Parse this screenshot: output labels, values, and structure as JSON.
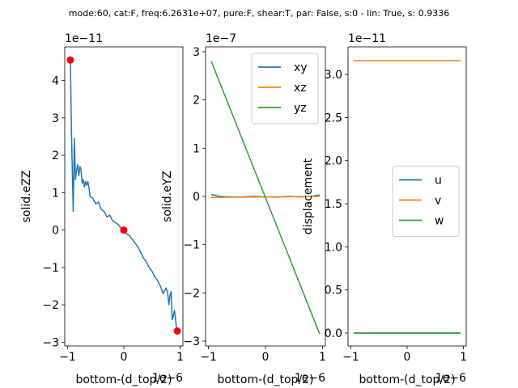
{
  "suptitle": "mode:60, cat:F, freq:6.2631e+07, pure:F, shear:T, par: False, s:0 - lin: True, s: 0.9336",
  "chart_data": [
    {
      "type": "line",
      "ylabel": "solid.eZZ",
      "xlabel": "bottom-(d_top/2)",
      "x_offset_text": "1e−6",
      "y_offset_text": "1e−11",
      "xlim": [
        -1.05,
        1.05
      ],
      "ylim": [
        -3.1,
        4.9
      ],
      "xticks": [
        -1,
        0,
        1
      ],
      "xtick_labels": [
        "−1",
        "0",
        "1"
      ],
      "yticks": [
        -3,
        -2,
        -1,
        0,
        1,
        2,
        3,
        4
      ],
      "ytick_labels": [
        "−3",
        "−2",
        "−1",
        "0",
        "1",
        "2",
        "3",
        "4"
      ],
      "series": [
        {
          "color": "#1f77b4",
          "x": [
            -0.95,
            -0.93,
            -0.9,
            -0.88,
            -0.86,
            -0.84,
            -0.82,
            -0.8,
            -0.78,
            -0.76,
            -0.74,
            -0.72,
            -0.7,
            -0.68,
            -0.66,
            -0.64,
            -0.62,
            -0.6,
            -0.55,
            -0.5,
            -0.45,
            -0.4,
            -0.35,
            -0.3,
            -0.25,
            -0.2,
            -0.15,
            -0.1,
            -0.05,
            0.0,
            0.05,
            0.1,
            0.15,
            0.2,
            0.25,
            0.3,
            0.35,
            0.4,
            0.45,
            0.5,
            0.55,
            0.6,
            0.65,
            0.7,
            0.75,
            0.78,
            0.8,
            0.82,
            0.84,
            0.86,
            0.88,
            0.9,
            0.93,
            0.95
          ],
          "y": [
            4.55,
            2.6,
            0.5,
            2.45,
            1.35,
            1.6,
            1.75,
            1.45,
            1.7,
            1.6,
            1.25,
            1.35,
            1.15,
            1.3,
            1.2,
            1.3,
            1.15,
            0.9,
            0.85,
            0.7,
            0.75,
            0.55,
            0.5,
            0.35,
            0.4,
            0.25,
            0.2,
            0.15,
            0.05,
            0.0,
            -0.1,
            -0.15,
            -0.25,
            -0.35,
            -0.45,
            -0.6,
            -0.75,
            -0.85,
            -1.0,
            -1.1,
            -1.25,
            -1.35,
            -1.5,
            -1.7,
            -1.55,
            -1.7,
            -2.0,
            -1.75,
            -1.65,
            -2.4,
            -2.3,
            -2.15,
            -2.55,
            -2.7
          ]
        }
      ],
      "markers": {
        "color": "#ff0000",
        "x": [
          -0.95,
          0.0,
          0.95
        ],
        "y": [
          4.55,
          0.0,
          -2.7
        ]
      }
    },
    {
      "type": "line",
      "ylabel": "solid.eYZ",
      "xlabel": "bottom-(d_top/2)",
      "x_offset_text": "1e−6",
      "y_offset_text": "1e−7",
      "xlim": [
        -1.05,
        1.05
      ],
      "ylim": [
        -3.1,
        3.1
      ],
      "xticks": [
        -1,
        0,
        1
      ],
      "xtick_labels": [
        "−1",
        "0",
        "1"
      ],
      "yticks": [
        -3,
        -2,
        -1,
        0,
        1,
        2,
        3
      ],
      "ytick_labels": [
        "−3",
        "−2",
        "−1",
        "0",
        "1",
        "2",
        "3"
      ],
      "legend": "top-right",
      "series": [
        {
          "name": "xy",
          "color": "#1f77b4",
          "x": [
            -0.95,
            -0.8,
            -0.6,
            -0.4,
            -0.2,
            0.0,
            0.2,
            0.4,
            0.6,
            0.8,
            0.95
          ],
          "y": [
            0.04,
            0.0,
            -0.01,
            -0.01,
            0.0,
            -0.01,
            -0.01,
            0.0,
            -0.01,
            0.0,
            0.03
          ]
        },
        {
          "name": "xz",
          "color": "#ff7f0e",
          "x": [
            -0.95,
            0.95
          ],
          "y": [
            -0.02,
            0.0
          ]
        },
        {
          "name": "yz",
          "color": "#2ca02c",
          "x": [
            -0.95,
            0.95
          ],
          "y": [
            2.8,
            -2.85
          ]
        }
      ]
    },
    {
      "type": "line",
      "ylabel": "displacement",
      "xlabel": "bottom-(d_top/2)",
      "x_offset_text": "1e−6",
      "y_offset_text": "1e−11",
      "xlim": [
        -1.05,
        1.05
      ],
      "ylim": [
        -0.15,
        3.32
      ],
      "xticks": [
        -1,
        0,
        1
      ],
      "xtick_labels": [
        "−1",
        "0",
        "1"
      ],
      "yticks": [
        0.0,
        0.5,
        1.0,
        1.5,
        2.0,
        2.5,
        3.0
      ],
      "ytick_labels": [
        "0.0",
        "0.5",
        "1.0",
        "1.5",
        "2.0",
        "2.5",
        "3.0"
      ],
      "legend": "center-right",
      "series": [
        {
          "name": "u",
          "color": "#1f77b4",
          "x": [
            -0.95,
            0.95
          ],
          "y": [
            0.0,
            0.0
          ]
        },
        {
          "name": "v",
          "color": "#ff7f0e",
          "x": [
            -0.95,
            0.95
          ],
          "y": [
            3.16,
            3.16
          ]
        },
        {
          "name": "w",
          "color": "#2ca02c",
          "x": [
            -0.95,
            0.95
          ],
          "y": [
            0.0,
            0.0
          ]
        }
      ]
    }
  ]
}
